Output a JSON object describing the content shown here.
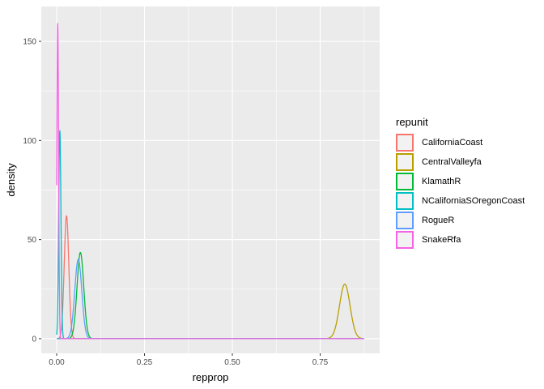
{
  "chart_data": {
    "type": "line",
    "subtype": "density",
    "title": "",
    "xlabel": "repprop",
    "ylabel": "density",
    "legend_title": "repunit",
    "legend_position": "right",
    "grid": true,
    "panel_background": "#EBEBEB",
    "gridline_color": "#FFFFFF",
    "tick_color": "#333333",
    "tick_label_color": "#4D4D4D",
    "xlim": [
      -0.0438,
      0.9193
    ],
    "ylim": [
      -7.4,
      167.6
    ],
    "x_data_range": [
      0,
      0.875
    ],
    "x_ticks": [
      0,
      0.25,
      0.5,
      0.75
    ],
    "x_tick_labels": [
      "0.00",
      "0.25",
      "0.50",
      "0.75"
    ],
    "x_minor_ticks": [
      0.125,
      0.375,
      0.625,
      0.875
    ],
    "y_ticks": [
      0,
      50,
      100,
      150
    ],
    "y_tick_labels": [
      "0",
      "50",
      "100",
      "150"
    ],
    "y_minor_ticks": [
      25,
      75,
      125
    ],
    "series": [
      {
        "name": "CaliforniaCoast",
        "color": "#F8766D",
        "peak_x": 0.028,
        "peak_density": 62,
        "sd": 0.0065
      },
      {
        "name": "CentralValleyfa",
        "color": "#B79F00",
        "peak_x": 0.82,
        "peak_density": 27.5,
        "sd": 0.015
      },
      {
        "name": "KlamathR",
        "color": "#00BA38",
        "peak_x": 0.0675,
        "peak_density": 43.5,
        "sd": 0.0095
      },
      {
        "name": "NCaliforniaSOregonCoast",
        "color": "#00BFC4",
        "peak_x": 0.009,
        "peak_density": 105,
        "sd": 0.0032
      },
      {
        "name": "RogueR",
        "color": "#619CFF",
        "peak_x": 0.0615,
        "peak_density": 40,
        "sd": 0.01
      },
      {
        "name": "SnakeRfa",
        "color": "#F564E3",
        "peak_x": 0.003,
        "peak_density": 159,
        "sd": 0.0025
      }
    ]
  }
}
